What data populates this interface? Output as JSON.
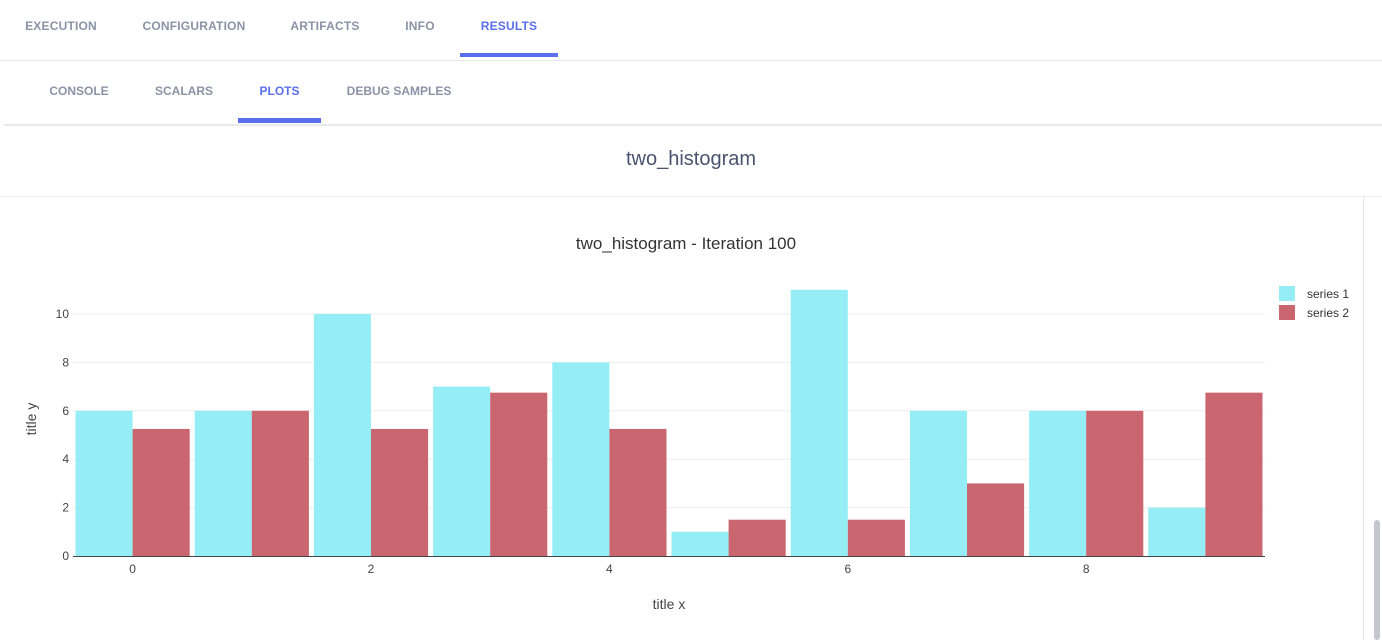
{
  "tabs": [
    {
      "label": "EXECUTION",
      "active": false
    },
    {
      "label": "CONFIGURATION",
      "active": false
    },
    {
      "label": "ARTIFACTS",
      "active": false
    },
    {
      "label": "INFO",
      "active": false
    },
    {
      "label": "RESULTS",
      "active": true
    }
  ],
  "subtabs": [
    {
      "label": "CONSOLE",
      "active": false
    },
    {
      "label": "SCALARS",
      "active": false
    },
    {
      "label": "PLOTS",
      "active": true
    },
    {
      "label": "DEBUG SAMPLES",
      "active": false
    }
  ],
  "plot_header": {
    "title": "two_histogram"
  },
  "colors": {
    "accent": "#5a6ff0",
    "series1": "#95eef6",
    "series2": "#ca6670"
  },
  "chart_data": {
    "type": "bar",
    "title": "two_histogram - Iteration 100",
    "xlabel": "title x",
    "ylabel": "title y",
    "x": [
      0,
      1,
      2,
      3,
      4,
      5,
      6,
      7,
      8,
      9
    ],
    "x_ticks": [
      "0",
      "2",
      "4",
      "6",
      "8"
    ],
    "y_ticks": [
      "0",
      "2",
      "4",
      "6",
      "8",
      "10"
    ],
    "ylim": [
      0,
      11.4
    ],
    "legend_position": "top-right",
    "series": [
      {
        "name": "series 1",
        "values": [
          6,
          6,
          10,
          7,
          8,
          1,
          11,
          6,
          6,
          2
        ]
      },
      {
        "name": "series 2",
        "values": [
          5.25,
          6,
          5.25,
          6.75,
          5.25,
          1.5,
          1.5,
          3,
          6,
          6.75
        ]
      }
    ]
  }
}
